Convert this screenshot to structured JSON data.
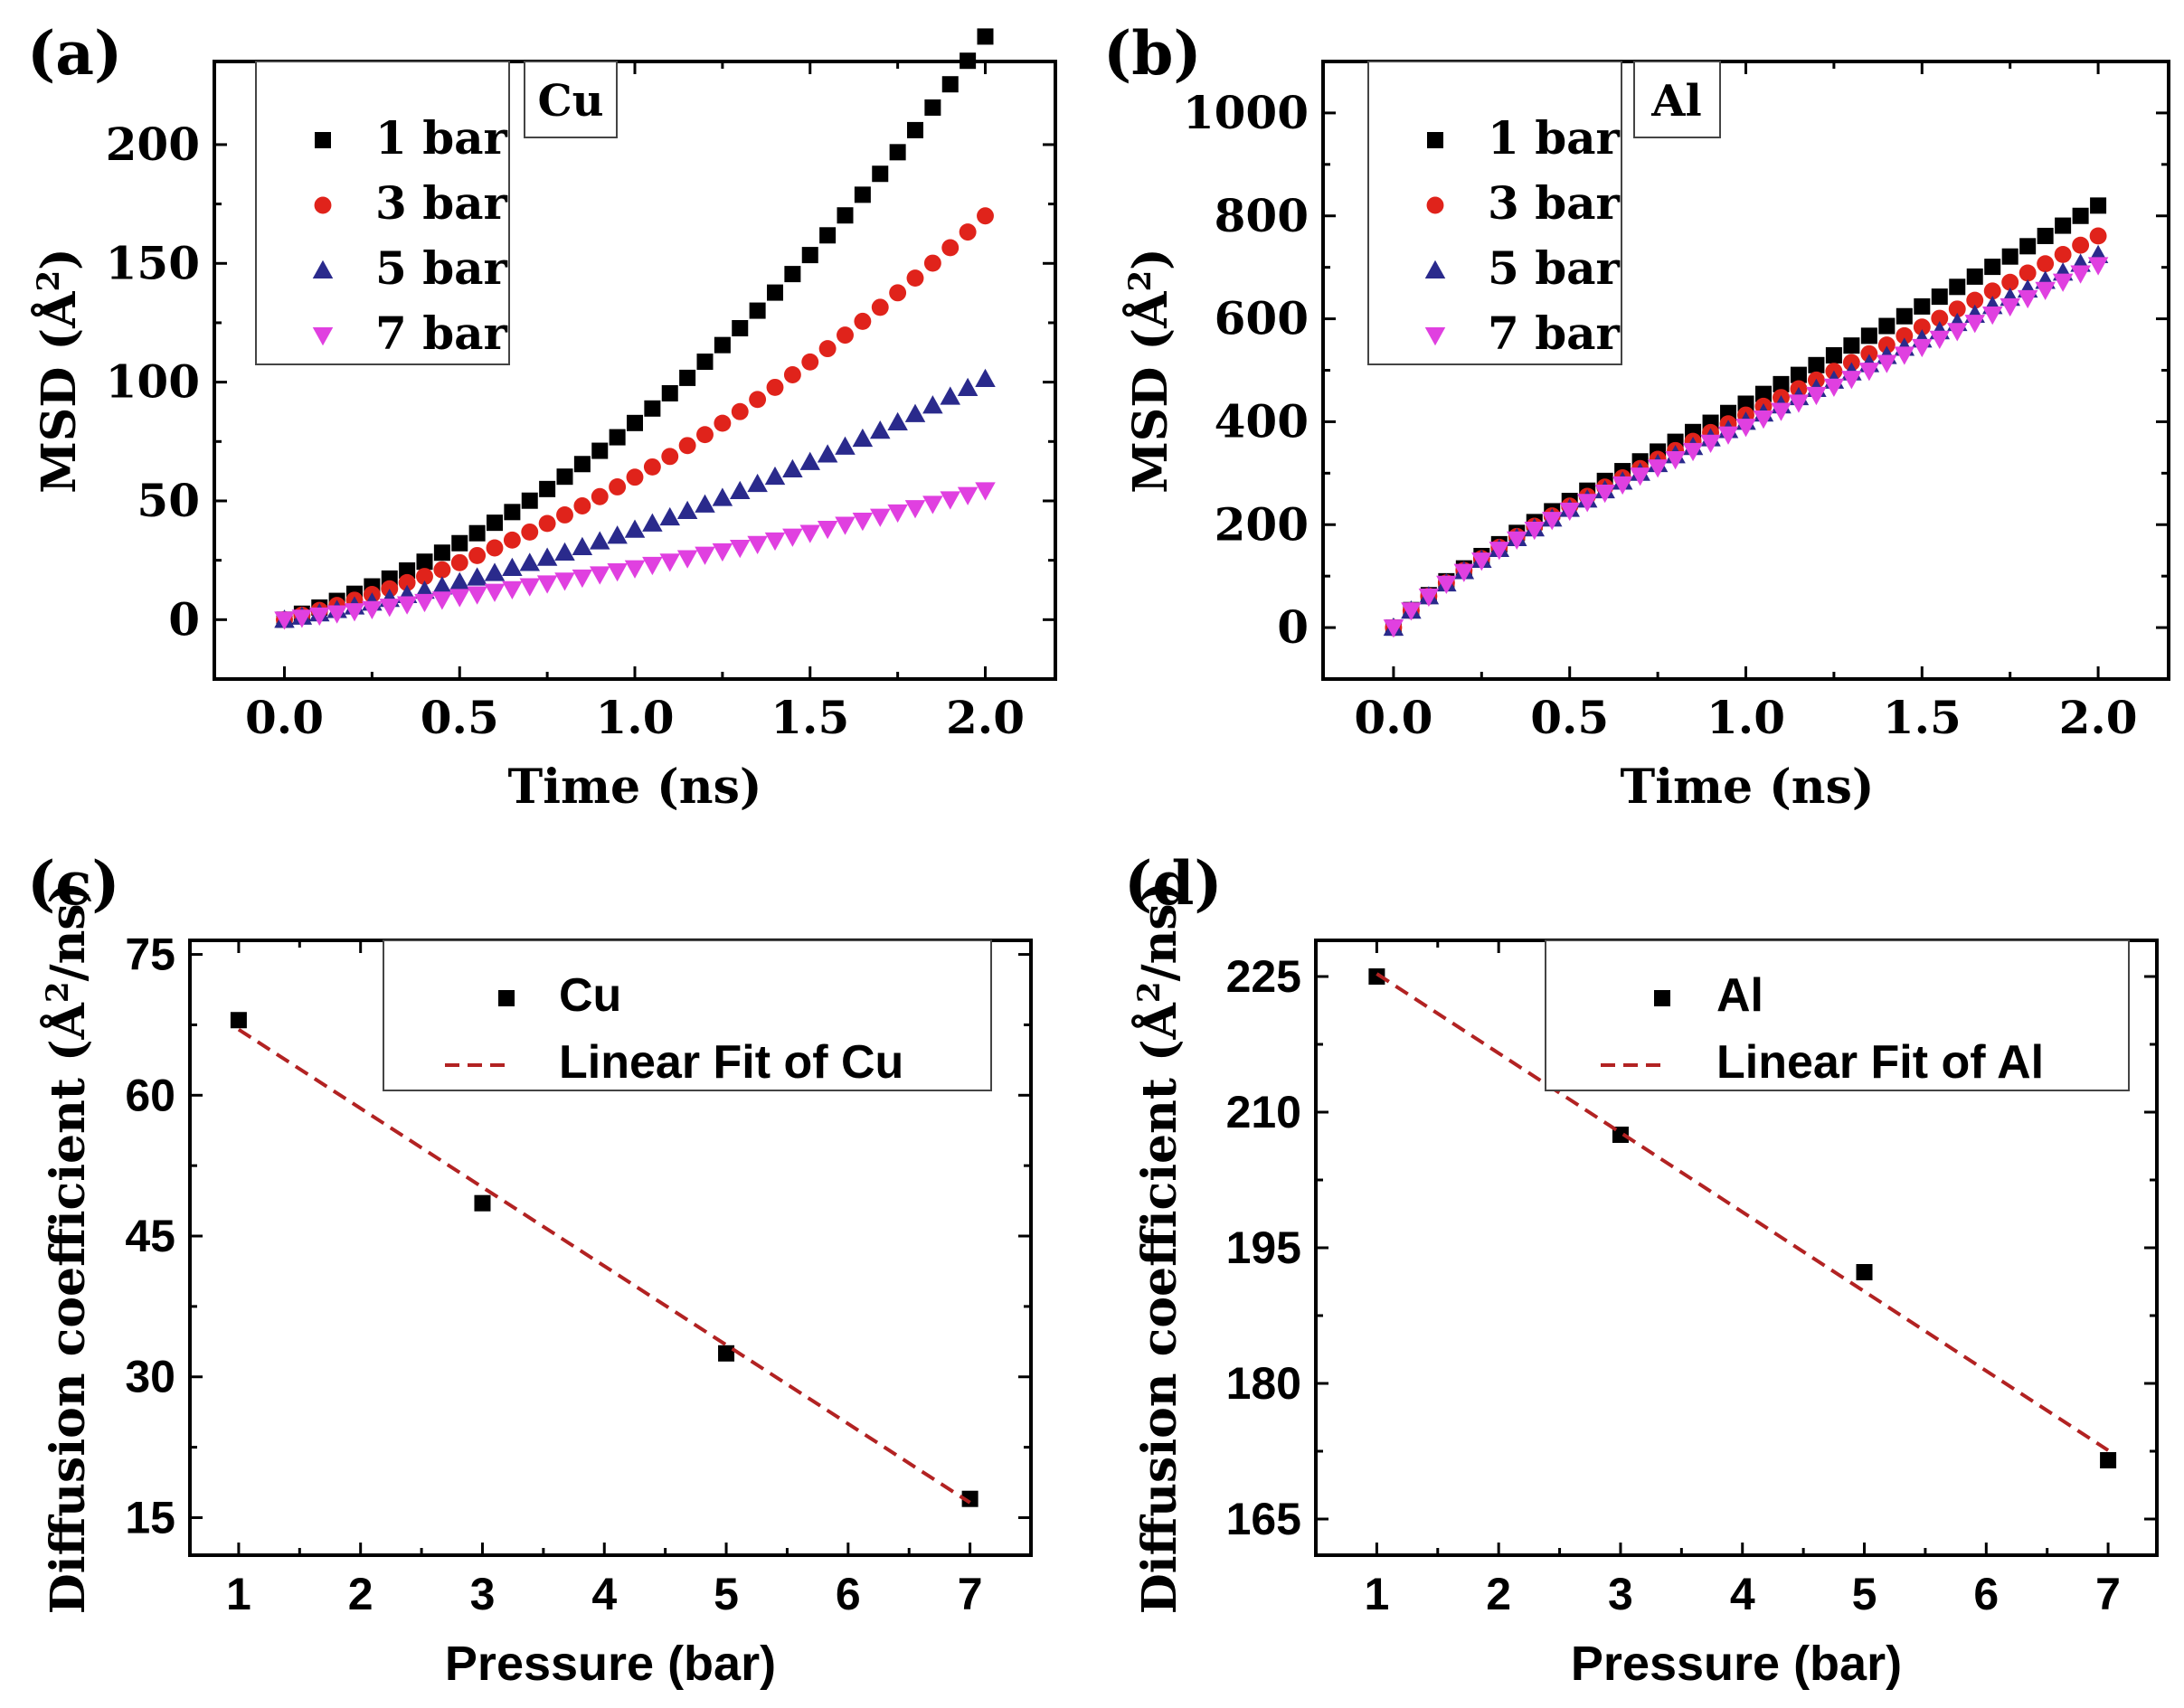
{
  "panel_labels": [
    "(a)",
    "(b)",
    "(c)",
    "(d)"
  ],
  "colors": {
    "1 bar": "#000000",
    "3 bar": "#e0231b",
    "5 bar": "#2a2a8c",
    "7 bar": "#e040e0",
    "fit": "#b22222"
  },
  "chart_data": [
    {
      "id": "a",
      "type": "scatter",
      "title": "Cu",
      "xlabel": "Time (ns)",
      "ylabel": "MSD (Å2)",
      "xlim": [
        -0.2,
        2.2
      ],
      "ylim": [
        -25,
        235
      ],
      "xticks": [
        0.0,
        0.5,
        1.0,
        1.5,
        2.0
      ],
      "xtick_labels": [
        "0.0",
        "0.5",
        "1.0",
        "1.5",
        "2.0"
      ],
      "yticks": [
        0,
        50,
        100,
        150,
        200
      ],
      "ytick_labels": [
        "0",
        "50",
        "100",
        "150",
        "200"
      ],
      "legend_position": "top-left",
      "x": [
        0.0,
        0.05,
        0.1,
        0.15,
        0.2,
        0.25,
        0.3,
        0.35,
        0.4,
        0.45,
        0.5,
        0.55,
        0.6,
        0.65,
        0.7,
        0.75,
        0.8,
        0.85,
        0.9,
        0.95,
        1.0,
        1.05,
        1.1,
        1.15,
        1.2,
        1.25,
        1.3,
        1.35,
        1.4,
        1.45,
        1.5,
        1.55,
        1.6,
        1.65,
        1.7,
        1.75,
        1.8,
        1.85,
        1.9,
        1.95,
        2.0
      ],
      "series": [
        {
          "name": "1 bar",
          "marker": "square",
          "values": [
            0,
            2.5,
            5.1,
            7.9,
            10.9,
            14,
            17.3,
            20.7,
            24.4,
            28.2,
            32.2,
            36.4,
            40.8,
            45.3,
            50.1,
            55,
            60.2,
            65.5,
            71.1,
            76.8,
            82.8,
            88.9,
            95.3,
            101.8,
            108.6,
            115.6,
            122.7,
            130.1,
            137.7,
            145.5,
            153.5,
            161.8,
            170.2,
            178.9,
            187.7,
            196.8,
            206.1,
            215.6,
            225.4,
            235.3,
            245.5
          ]
        },
        {
          "name": "3 bar",
          "marker": "circle",
          "values": [
            0,
            1.9,
            3.9,
            6,
            8.2,
            10.6,
            13,
            15.6,
            18.2,
            21,
            24,
            27,
            30.2,
            33.5,
            36.9,
            40.5,
            44.1,
            47.9,
            51.8,
            55.9,
            60,
            64.3,
            68.7,
            73.3,
            77.9,
            82.7,
            87.6,
            92.7,
            97.8,
            103.1,
            108.5,
            114.1,
            119.8,
            125.6,
            131.5,
            137.6,
            143.8,
            150.1,
            156.6,
            163.2,
            170
          ]
        },
        {
          "name": "5 bar",
          "marker": "triangle-up",
          "values": [
            0,
            1.3,
            2.7,
            4.1,
            5.6,
            7.2,
            8.8,
            10.4,
            12.2,
            14,
            15.8,
            17.8,
            19.7,
            21.8,
            23.9,
            26.1,
            28.3,
            30.6,
            33,
            35.4,
            37.9,
            40.5,
            43.1,
            45.8,
            48.5,
            51.3,
            54.2,
            57.2,
            60.2,
            63.3,
            66.4,
            69.6,
            72.9,
            76.2,
            79.6,
            83.1,
            86.6,
            90.2,
            93.9,
            97.6,
            101.4
          ]
        },
        {
          "name": "7 bar",
          "marker": "triangle-down",
          "values": [
            0,
            0.8,
            1.7,
            2.6,
            3.5,
            4.4,
            5.4,
            6.4,
            7.4,
            8.4,
            9.5,
            10.6,
            11.7,
            12.8,
            14,
            15.2,
            16.4,
            17.7,
            19,
            20.3,
            21.6,
            23,
            24.4,
            25.8,
            27.3,
            28.7,
            30.2,
            31.8,
            33.3,
            34.9,
            36.5,
            38.2,
            39.9,
            41.6,
            43.3,
            45.1,
            46.9,
            48.7,
            50.6,
            52.4,
            54.4
          ]
        }
      ]
    },
    {
      "id": "b",
      "type": "scatter",
      "title": "Al",
      "xlabel": "Time (ns)",
      "ylabel": "MSD (Å2)",
      "xlim": [
        -0.2,
        2.2
      ],
      "ylim": [
        -100,
        1100
      ],
      "xticks": [
        0.0,
        0.5,
        1.0,
        1.5,
        2.0
      ],
      "xtick_labels": [
        "0.0",
        "0.5",
        "1.0",
        "1.5",
        "2.0"
      ],
      "yticks": [
        0,
        200,
        400,
        600,
        800,
        1000
      ],
      "ytick_labels": [
        "0",
        "200",
        "400",
        "600",
        "800",
        "1000"
      ],
      "legend_position": "top-left",
      "x": [
        0.0,
        0.05,
        0.1,
        0.15,
        0.2,
        0.25,
        0.3,
        0.35,
        0.4,
        0.45,
        0.5,
        0.55,
        0.6,
        0.65,
        0.7,
        0.75,
        0.8,
        0.85,
        0.9,
        0.95,
        1.0,
        1.05,
        1.1,
        1.15,
        1.2,
        1.25,
        1.3,
        1.35,
        1.4,
        1.45,
        1.5,
        1.55,
        1.6,
        1.65,
        1.7,
        1.75,
        1.8,
        1.85,
        1.9,
        1.95,
        2.0
      ],
      "series": [
        {
          "name": "1 bar",
          "marker": "square",
          "values": [
            0,
            34,
            63,
            90,
            115,
            139,
            162,
            184,
            205,
            226,
            246,
            266,
            285,
            304,
            323,
            342,
            361,
            380,
            398,
            417,
            435,
            454,
            473,
            491,
            510,
            529,
            548,
            567,
            586,
            605,
            624,
            643,
            662,
            682,
            701,
            721,
            741,
            761,
            781,
            800,
            820
          ]
        },
        {
          "name": "3 bar",
          "marker": "circle",
          "values": [
            0,
            33,
            61,
            87,
            111,
            134,
            156,
            177,
            197,
            217,
            236,
            255,
            273,
            291,
            309,
            327,
            344,
            362,
            379,
            396,
            413,
            430,
            447,
            464,
            481,
            498,
            515,
            532,
            549,
            567,
            584,
            601,
            619,
            636,
            654,
            671,
            689,
            707,
            725,
            743,
            761
          ]
        },
        {
          "name": "5 bar",
          "marker": "triangle-up",
          "values": [
            0,
            33,
            61,
            86,
            110,
            132,
            153,
            174,
            193,
            212,
            231,
            249,
            267,
            284,
            301,
            318,
            335,
            351,
            368,
            384,
            400,
            416,
            432,
            448,
            464,
            480,
            496,
            512,
            528,
            544,
            560,
            576,
            592,
            608,
            625,
            641,
            657,
            674,
            690,
            707,
            724
          ]
        },
        {
          "name": "7 bar",
          "marker": "triangle-down",
          "values": [
            0,
            33,
            60,
            85,
            108,
            130,
            151,
            171,
            190,
            209,
            227,
            244,
            262,
            278,
            295,
            311,
            327,
            343,
            359,
            375,
            390,
            406,
            421,
            437,
            452,
            468,
            483,
            499,
            514,
            530,
            545,
            561,
            576,
            592,
            608,
            624,
            640,
            656,
            672,
            688,
            704
          ]
        }
      ]
    },
    {
      "id": "c",
      "type": "scatter",
      "title": "",
      "xlabel": "Pressure (bar)",
      "ylabel": "Diffusion coefficient (Å2/ns)",
      "xlim": [
        0.6,
        7.5
      ],
      "ylim": [
        11,
        76.5
      ],
      "xticks": [
        1,
        2,
        3,
        4,
        5,
        6,
        7
      ],
      "xtick_labels": [
        "1",
        "2",
        "3",
        "4",
        "5",
        "6",
        "7"
      ],
      "yticks": [
        15,
        30,
        45,
        60,
        75
      ],
      "ytick_labels": [
        "15",
        "30",
        "45",
        "60",
        "75"
      ],
      "legend_position": "top-right",
      "series": [
        {
          "name": "Cu",
          "marker": "square",
          "x": [
            1,
            3,
            5,
            7
          ],
          "values": [
            68,
            48.5,
            32.5,
            17
          ]
        },
        {
          "name": "Linear Fit of Cu",
          "marker": "dashed-line",
          "x": [
            1,
            7
          ],
          "values": [
            67,
            16.6
          ]
        }
      ]
    },
    {
      "id": "d",
      "type": "scatter",
      "title": "",
      "xlabel": "Pressure (bar)",
      "ylabel": "Diffusion coefficient (Å2/ns)",
      "xlim": [
        0.5,
        7.4
      ],
      "ylim": [
        161,
        229
      ],
      "xticks": [
        1,
        2,
        3,
        4,
        5,
        6,
        7
      ],
      "xtick_labels": [
        "1",
        "2",
        "3",
        "4",
        "5",
        "6",
        "7"
      ],
      "yticks": [
        165,
        180,
        195,
        210,
        225
      ],
      "ytick_labels": [
        "165",
        "180",
        "195",
        "210",
        "225"
      ],
      "legend_position": "top-right",
      "series": [
        {
          "name": "Al",
          "marker": "square",
          "x": [
            1,
            3,
            5,
            7
          ],
          "values": [
            225,
            207.5,
            192.3,
            171.5
          ]
        },
        {
          "name": "Linear Fit of Al",
          "marker": "dashed-line",
          "x": [
            1,
            7
          ],
          "values": [
            225.3,
            172.6
          ]
        }
      ]
    }
  ]
}
